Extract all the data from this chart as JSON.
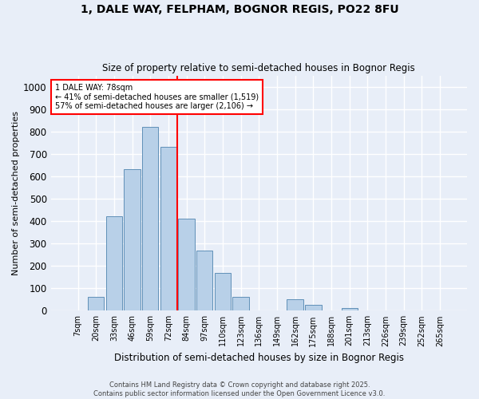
{
  "title1": "1, DALE WAY, FELPHAM, BOGNOR REGIS, PO22 8FU",
  "title2": "Size of property relative to semi-detached houses in Bognor Regis",
  "xlabel": "Distribution of semi-detached houses by size in Bognor Regis",
  "ylabel": "Number of semi-detached properties",
  "categories": [
    "7sqm",
    "20sqm",
    "33sqm",
    "46sqm",
    "59sqm",
    "72sqm",
    "84sqm",
    "97sqm",
    "110sqm",
    "123sqm",
    "136sqm",
    "149sqm",
    "162sqm",
    "175sqm",
    "188sqm",
    "201sqm",
    "213sqm",
    "226sqm",
    "239sqm",
    "252sqm",
    "265sqm"
  ],
  "values": [
    0,
    60,
    420,
    630,
    820,
    730,
    410,
    270,
    170,
    60,
    0,
    0,
    50,
    25,
    0,
    10,
    0,
    0,
    0,
    0,
    0
  ],
  "bar_color": "#b8d0e8",
  "bar_edge_color": "#6090b8",
  "background_color": "#e8eef8",
  "grid_color": "#ffffff",
  "vline_x_index": 6,
  "vline_color": "red",
  "annotation_title": "1 DALE WAY: 78sqm",
  "annotation_line1": "← 41% of semi-detached houses are smaller (1,519)",
  "annotation_line2": "57% of semi-detached houses are larger (2,106) →",
  "footer1": "Contains HM Land Registry data © Crown copyright and database right 2025.",
  "footer2": "Contains public sector information licensed under the Open Government Licence v3.0.",
  "ylim": [
    0,
    1050
  ],
  "yticks": [
    0,
    100,
    200,
    300,
    400,
    500,
    600,
    700,
    800,
    900,
    1000
  ]
}
